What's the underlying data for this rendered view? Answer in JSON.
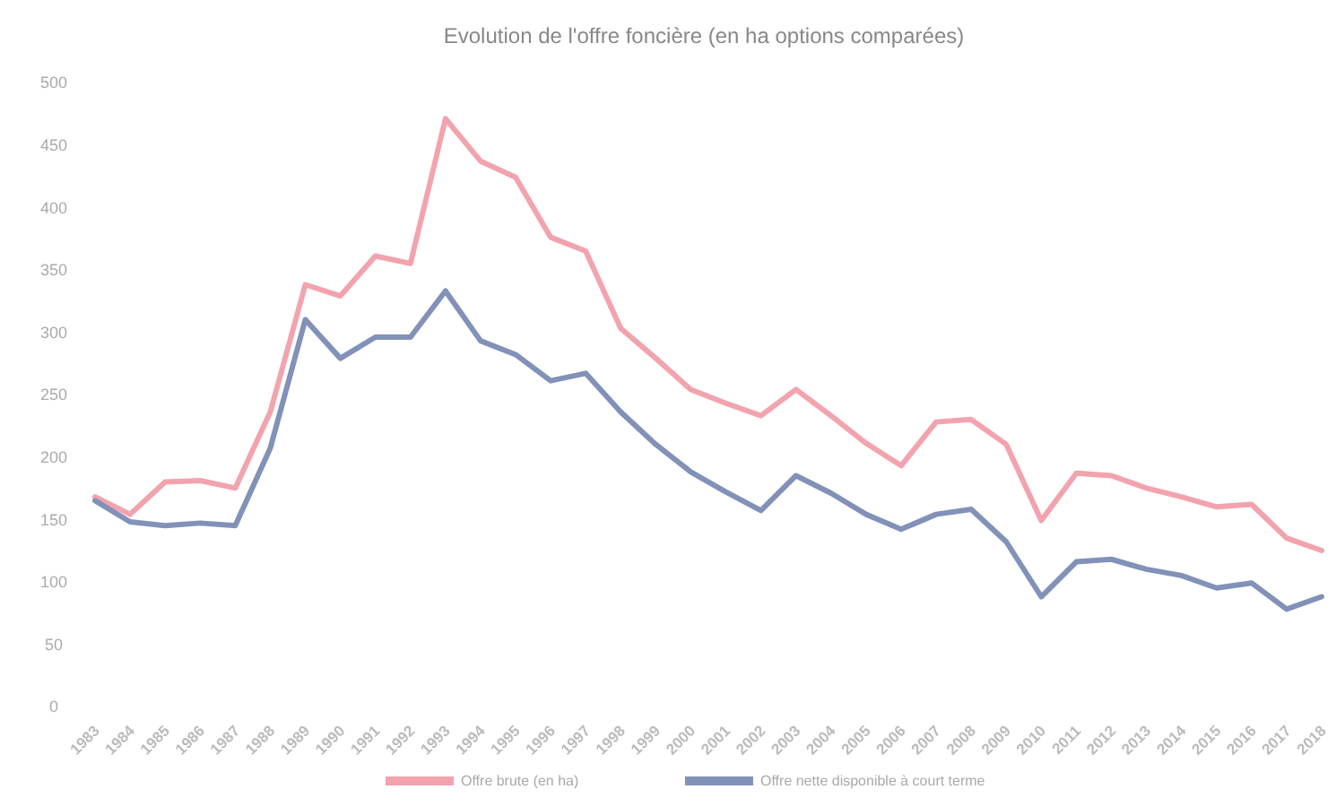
{
  "chart_data": {
    "type": "line",
    "title": "Evolution de l'offre foncière (en ha options comparées)",
    "categories": [
      "1983",
      "1984",
      "1985",
      "1986",
      "1987",
      "1988",
      "1989",
      "1990",
      "1991",
      "1992",
      "1993",
      "1994",
      "1995",
      "1996",
      "1997",
      "1998",
      "1999",
      "2000",
      "2001",
      "2002",
      "2003",
      "2004",
      "2005",
      "2006",
      "2007",
      "2008",
      "2009",
      "2010",
      "2011",
      "2012",
      "2013",
      "2014",
      "2015",
      "2016",
      "2017",
      "2018"
    ],
    "series": [
      {
        "name": "Offre brute (en ha)",
        "color": "#f2a3ae",
        "values": [
          168,
          154,
          180,
          181,
          175,
          236,
          338,
          329,
          361,
          355,
          471,
          437,
          424,
          376,
          365,
          303,
          279,
          254,
          243,
          233,
          254,
          233,
          211,
          193,
          228,
          230,
          210,
          149,
          187,
          185,
          175,
          168,
          160,
          162,
          135,
          125
        ]
      },
      {
        "name": "Offre nette disponible à court terme",
        "color": "#8191b8",
        "values": [
          165,
          148,
          145,
          147,
          145,
          207,
          310,
          279,
          296,
          296,
          333,
          293,
          282,
          261,
          267,
          236,
          210,
          188,
          172,
          157,
          185,
          171,
          154,
          142,
          154,
          158,
          132,
          88,
          116,
          118,
          110,
          105,
          95,
          99,
          78,
          88
        ]
      }
    ],
    "ylim": [
      0,
      500
    ],
    "yticks": [
      0,
      50,
      100,
      150,
      200,
      250,
      300,
      350,
      400,
      450,
      500
    ],
    "grid": false,
    "legend": "bottom",
    "marker": "none",
    "line_style": "solid"
  }
}
